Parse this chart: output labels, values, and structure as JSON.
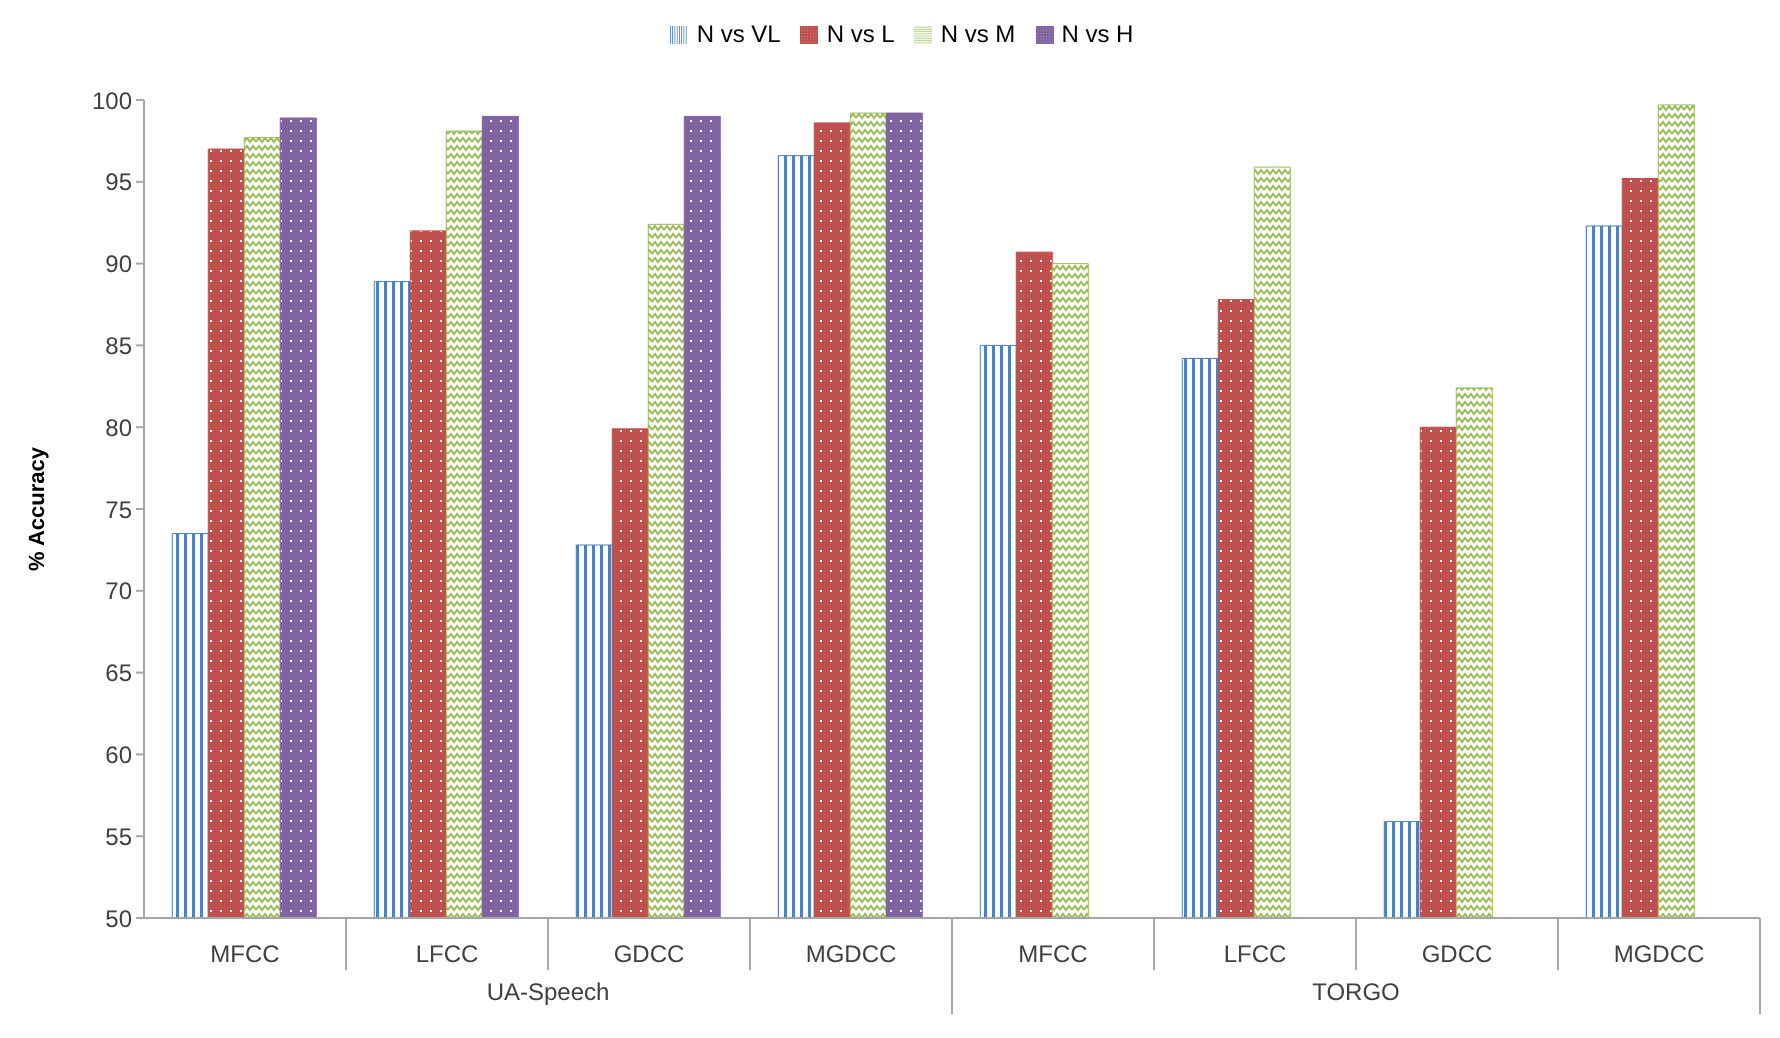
{
  "chart_data": {
    "type": "bar",
    "ylabel": "% Accuracy",
    "categories": [
      "MFCC",
      "LFCC",
      "GDCC",
      "MGDCC",
      "MFCC",
      "LFCC",
      "GDCC",
      "MGDCC"
    ],
    "series": [
      {
        "name": "N vs VL",
        "color": "#4f81bd",
        "values": [
          73.5,
          88.9,
          72.8,
          96.6,
          85.0,
          84.2,
          55.9,
          92.3
        ]
      },
      {
        "name": "N vs L",
        "color": "#c0504d",
        "values": [
          97.0,
          92.0,
          79.9,
          98.6,
          90.7,
          87.8,
          80.0,
          95.2
        ]
      },
      {
        "name": "N vs M",
        "color": "#9bbb59",
        "values": [
          97.7,
          98.1,
          92.4,
          99.2,
          90.0,
          95.9,
          82.4,
          99.7
        ]
      },
      {
        "name": "N vs H",
        "color": "#8064a2",
        "values": [
          98.9,
          99.0,
          99.0,
          99.2,
          null,
          null,
          null,
          null
        ]
      }
    ],
    "ylim": [
      50,
      100
    ],
    "yticks": [
      50,
      55,
      60,
      65,
      70,
      75,
      80,
      85,
      90,
      95,
      100
    ],
    "legend": "top",
    "annotations": [
      "UA-Speech",
      "TORGO"
    ]
  }
}
